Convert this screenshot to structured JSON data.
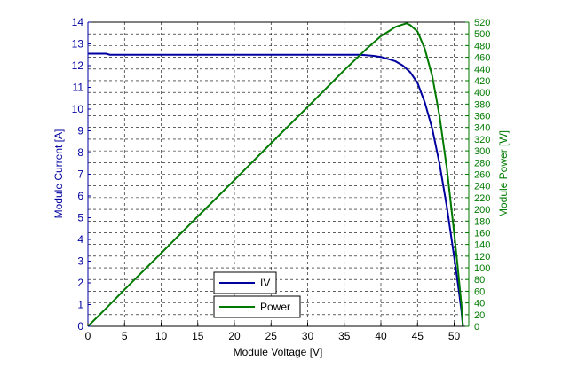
{
  "chart_data": {
    "type": "line",
    "xlabel": "Module Voltage [V]",
    "ylabel_left": "Module Current [A]",
    "ylabel_right": "Module Power [W]",
    "xlim": [
      0,
      52
    ],
    "ylim_left": [
      0,
      14
    ],
    "ylim_right": [
      0,
      520
    ],
    "x_ticks": [
      0,
      5,
      10,
      15,
      20,
      25,
      30,
      35,
      40,
      45,
      50
    ],
    "y_left_ticks": [
      0,
      1,
      2,
      3,
      4,
      5,
      6,
      7,
      8,
      9,
      10,
      11,
      12,
      13,
      14
    ],
    "y_right_ticks": [
      0,
      20,
      40,
      60,
      80,
      100,
      120,
      140,
      160,
      180,
      200,
      220,
      240,
      260,
      280,
      300,
      320,
      340,
      360,
      380,
      400,
      420,
      440,
      460,
      480,
      500,
      520
    ],
    "grid": true,
    "legend_position": "bottom-center",
    "colors": {
      "iv": "#0000a0",
      "power": "#007a00",
      "axis_left": "#0000a0",
      "axis_right": "#007a00",
      "grid": "#000000"
    },
    "series": [
      {
        "name": "IV",
        "axis": "left",
        "x": [
          0,
          2.5,
          3,
          5,
          10,
          15,
          20,
          25,
          30,
          35,
          37,
          38,
          39,
          40,
          41,
          42,
          43,
          44,
          45,
          46,
          47,
          48,
          49,
          50,
          50.5,
          51,
          51.2
        ],
        "y": [
          12.55,
          12.55,
          12.5,
          12.5,
          12.5,
          12.5,
          12.5,
          12.5,
          12.5,
          12.5,
          12.5,
          12.48,
          12.45,
          12.4,
          12.3,
          12.2,
          12.0,
          11.7,
          11.2,
          10.3,
          9.1,
          7.5,
          5.5,
          3.2,
          2.0,
          0.7,
          0
        ]
      },
      {
        "name": "Power",
        "axis": "right",
        "x": [
          0,
          2.5,
          5,
          10,
          15,
          20,
          25,
          30,
          35,
          38,
          40,
          41,
          42,
          43,
          43.5,
          44,
          45,
          46,
          47,
          48,
          49,
          50,
          50.5,
          51,
          51.2
        ],
        "y": [
          0,
          31,
          63,
          125,
          188,
          250,
          313,
          375,
          438,
          474,
          496,
          504,
          512,
          516,
          518,
          515,
          504,
          474,
          428,
          360,
          270,
          160,
          100,
          36,
          0
        ]
      }
    ]
  }
}
